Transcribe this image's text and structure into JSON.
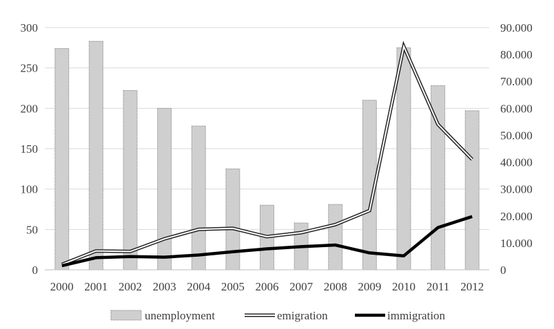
{
  "chart_data": {
    "type": "bar",
    "categories": [
      "2000",
      "2001",
      "2002",
      "2003",
      "2004",
      "2005",
      "2006",
      "2007",
      "2008",
      "2009",
      "2010",
      "2011",
      "2012"
    ],
    "y_left": {
      "ylim": [
        0,
        300
      ],
      "ticks": [
        "0",
        "50",
        "100",
        "150",
        "200",
        "250",
        "300"
      ]
    },
    "y_right": {
      "ylim": [
        0,
        90000
      ],
      "ticks": [
        "0",
        "10.000",
        "20.000",
        "30.000",
        "40.000",
        "50.000",
        "60.000",
        "70.000",
        "80.000",
        "90.000"
      ]
    },
    "grid": "horizontal",
    "legend_position": "bottom",
    "series": [
      {
        "name": "unemployment",
        "type": "bar",
        "axis": "left",
        "values": [
          274,
          283,
          222,
          200,
          178,
          125,
          80,
          58,
          81,
          210,
          275,
          228,
          197
        ]
      },
      {
        "name": "emigration",
        "type": "line",
        "style": "double",
        "axis": "right",
        "values": [
          2000,
          7000,
          6800,
          11500,
          15000,
          15400,
          12300,
          13800,
          16800,
          22000,
          83000,
          54000,
          41000
        ]
      },
      {
        "name": "immigration",
        "type": "line",
        "style": "thick",
        "axis": "right",
        "values": [
          1500,
          4500,
          4900,
          4700,
          5500,
          6700,
          7800,
          8600,
          9200,
          6300,
          5200,
          15700,
          19800
        ]
      }
    ]
  },
  "colors": {
    "bar_fill": "#d0cfcf",
    "bar_stroke": "#8c8c8c",
    "grid": "#d9d9d9",
    "emigration": "#262626",
    "immigration": "#000000"
  }
}
